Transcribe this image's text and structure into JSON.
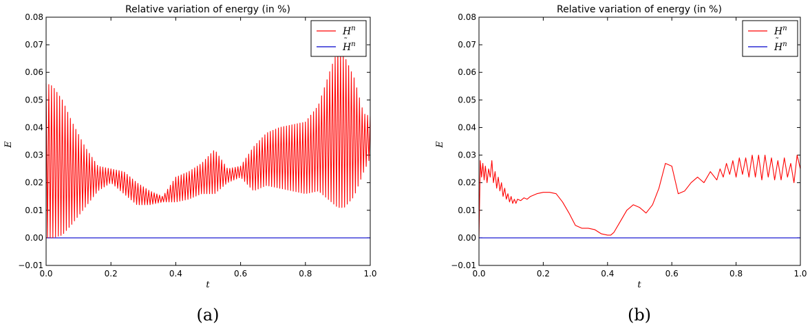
{
  "chart_data": [
    {
      "type": "line",
      "title": "Relative variation of energy (in %)",
      "xlabel": "t",
      "ylabel": "E",
      "xlim": [
        0.0,
        1.0
      ],
      "ylim": [
        -0.01,
        0.08
      ],
      "xticks": [
        "0.0",
        "0.2",
        "0.4",
        "0.6",
        "0.8",
        "1.0"
      ],
      "yticks": [
        "−0.01",
        "0.00",
        "0.01",
        "0.02",
        "0.03",
        "0.04",
        "0.05",
        "0.06",
        "0.07",
        "0.08"
      ],
      "legend_position": "top-right",
      "caption": "(a)",
      "series": [
        {
          "name": "H",
          "name_sup": "n",
          "name_accent": "",
          "color": "#ff0000",
          "style": "oscillating",
          "envelope_t": [
            0.0,
            0.02,
            0.05,
            0.08,
            0.12,
            0.16,
            0.2,
            0.24,
            0.28,
            0.32,
            0.36,
            0.4,
            0.44,
            0.48,
            0.52,
            0.56,
            0.6,
            0.64,
            0.68,
            0.72,
            0.76,
            0.8,
            0.84,
            0.88,
            0.9,
            0.92,
            0.95,
            0.98,
            1.0
          ],
          "envelope_upper": [
            0.056,
            0.055,
            0.05,
            0.042,
            0.033,
            0.026,
            0.025,
            0.024,
            0.02,
            0.017,
            0.015,
            0.022,
            0.024,
            0.027,
            0.032,
            0.025,
            0.026,
            0.033,
            0.038,
            0.04,
            0.041,
            0.042,
            0.048,
            0.062,
            0.068,
            0.066,
            0.058,
            0.045,
            0.044
          ],
          "envelope_lower": [
            0.0,
            0.0,
            0.001,
            0.005,
            0.011,
            0.017,
            0.02,
            0.016,
            0.012,
            0.012,
            0.013,
            0.013,
            0.014,
            0.016,
            0.016,
            0.02,
            0.022,
            0.017,
            0.019,
            0.018,
            0.017,
            0.016,
            0.017,
            0.013,
            0.011,
            0.011,
            0.015,
            0.024,
            0.029
          ]
        },
        {
          "name": "H",
          "name_sup": "n",
          "name_accent": "˜",
          "color": "#0000cc",
          "style": "line",
          "x": [
            0.0,
            1.0
          ],
          "y": [
            0.0,
            0.0
          ]
        }
      ]
    },
    {
      "type": "line",
      "title": "Relative variation of energy (in %)",
      "xlabel": "t",
      "ylabel": "E",
      "xlim": [
        0.0,
        1.0
      ],
      "ylim": [
        -0.01,
        0.08
      ],
      "xticks": [
        "0.0",
        "0.2",
        "0.4",
        "0.6",
        "0.8",
        "1.0"
      ],
      "yticks": [
        "−0.01",
        "0.00",
        "0.01",
        "0.02",
        "0.03",
        "0.04",
        "0.05",
        "0.06",
        "0.07",
        "0.08"
      ],
      "legend_position": "top-right",
      "caption": "(b)",
      "series": [
        {
          "name": "H",
          "name_sup": "n",
          "name_accent": "",
          "color": "#ff0000",
          "style": "line",
          "x": [
            0.0,
            0.004,
            0.008,
            0.012,
            0.016,
            0.02,
            0.025,
            0.03,
            0.035,
            0.04,
            0.045,
            0.05,
            0.055,
            0.06,
            0.065,
            0.07,
            0.075,
            0.08,
            0.085,
            0.09,
            0.095,
            0.1,
            0.105,
            0.11,
            0.115,
            0.12,
            0.13,
            0.14,
            0.15,
            0.16,
            0.17,
            0.18,
            0.2,
            0.22,
            0.24,
            0.26,
            0.28,
            0.3,
            0.32,
            0.34,
            0.36,
            0.38,
            0.4,
            0.41,
            0.42,
            0.44,
            0.46,
            0.48,
            0.5,
            0.52,
            0.54,
            0.56,
            0.58,
            0.6,
            0.62,
            0.64,
            0.66,
            0.68,
            0.7,
            0.72,
            0.74,
            0.75,
            0.76,
            0.77,
            0.78,
            0.79,
            0.8,
            0.81,
            0.82,
            0.83,
            0.84,
            0.85,
            0.86,
            0.87,
            0.88,
            0.89,
            0.9,
            0.91,
            0.92,
            0.93,
            0.94,
            0.95,
            0.96,
            0.97,
            0.98,
            0.99,
            1.0
          ],
          "y": [
            0.0,
            0.028,
            0.022,
            0.027,
            0.021,
            0.026,
            0.02,
            0.025,
            0.022,
            0.028,
            0.02,
            0.024,
            0.018,
            0.022,
            0.017,
            0.02,
            0.015,
            0.018,
            0.014,
            0.016,
            0.013,
            0.015,
            0.0125,
            0.014,
            0.0125,
            0.014,
            0.0135,
            0.0145,
            0.014,
            0.015,
            0.0155,
            0.016,
            0.0165,
            0.0165,
            0.016,
            0.013,
            0.009,
            0.0045,
            0.0035,
            0.0035,
            0.003,
            0.0015,
            0.001,
            0.001,
            0.002,
            0.006,
            0.01,
            0.012,
            0.011,
            0.009,
            0.012,
            0.018,
            0.027,
            0.026,
            0.016,
            0.017,
            0.02,
            0.022,
            0.02,
            0.024,
            0.021,
            0.025,
            0.022,
            0.027,
            0.023,
            0.028,
            0.022,
            0.029,
            0.023,
            0.029,
            0.022,
            0.03,
            0.022,
            0.03,
            0.021,
            0.03,
            0.022,
            0.029,
            0.021,
            0.028,
            0.021,
            0.029,
            0.022,
            0.027,
            0.02,
            0.03,
            0.025
          ]
        },
        {
          "name": "H",
          "name_sup": "n",
          "name_accent": "˜",
          "color": "#0000cc",
          "style": "line",
          "x": [
            0.0,
            1.0
          ],
          "y": [
            0.0,
            0.0
          ]
        }
      ]
    }
  ]
}
